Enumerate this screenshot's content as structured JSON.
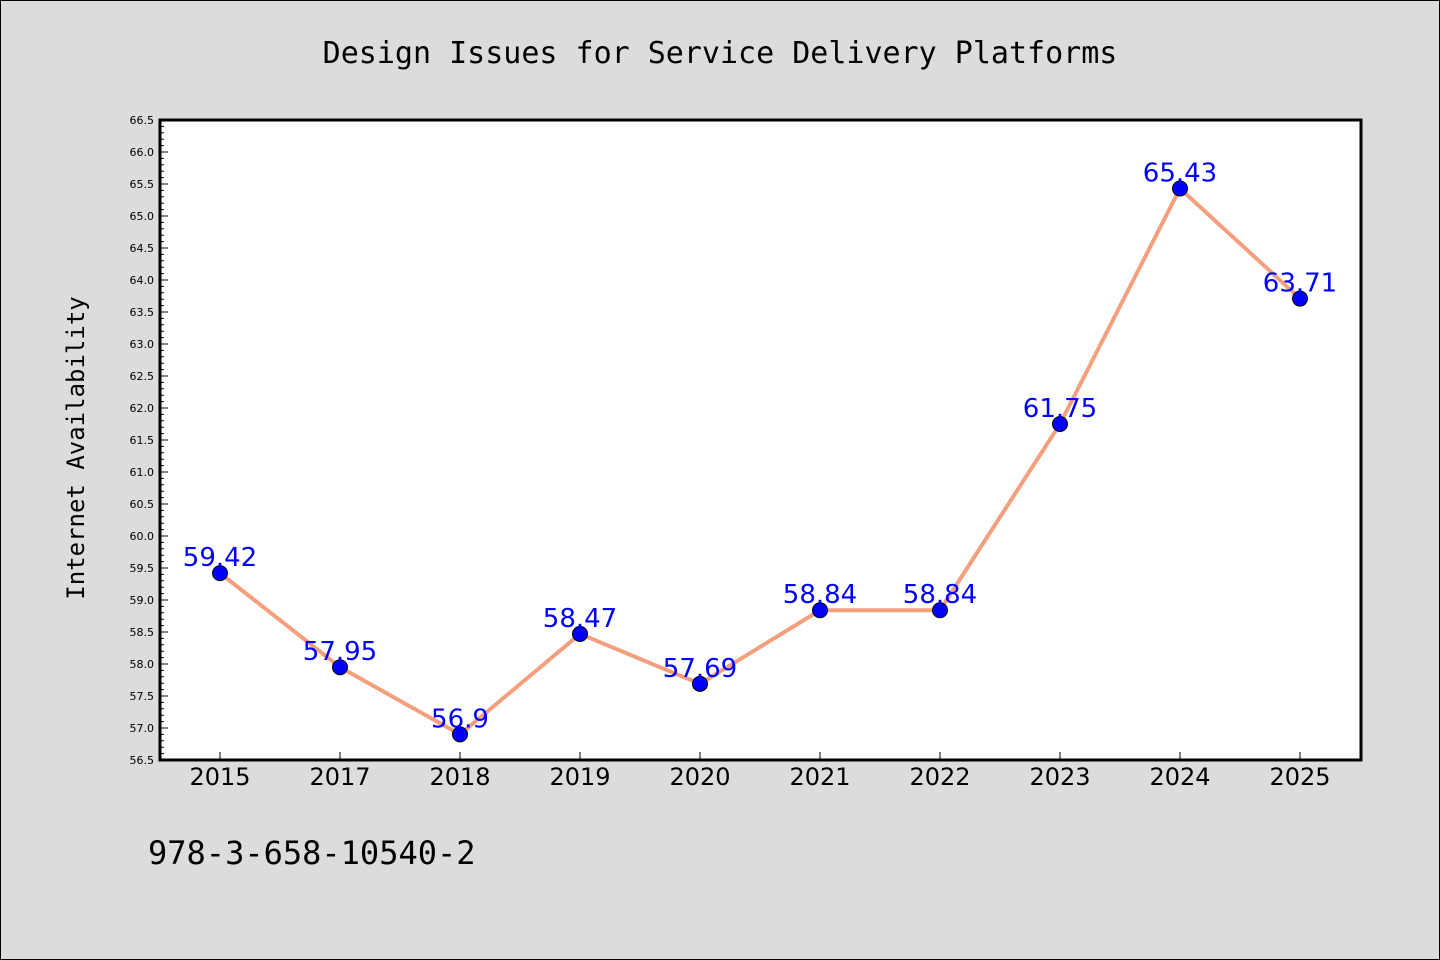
{
  "chart_data": {
    "type": "line",
    "title": "Design Issues for Service Delivery Platforms",
    "ylabel": "Internet Availability",
    "xlabel": "",
    "categories": [
      "2015",
      "2017",
      "2018",
      "2019",
      "2020",
      "2021",
      "2022",
      "2023",
      "2024",
      "2025"
    ],
    "values": [
      59.42,
      57.95,
      56.9,
      58.47,
      57.69,
      58.84,
      58.84,
      61.75,
      65.43,
      63.71
    ],
    "data_labels": [
      "59.42",
      "57.95",
      "56.9",
      "58.47",
      "57.69",
      "58.84",
      "58.84",
      "61.75",
      "65.43",
      "63.71"
    ],
    "ylim": [
      56.5,
      66.5
    ],
    "ytick_step": 0.5,
    "grid": false,
    "line_color": "#f4a07f",
    "marker_color": "#0000ff",
    "label_color": "#0000ff"
  },
  "footer": {
    "isbn": "978-3-658-10540-2"
  }
}
